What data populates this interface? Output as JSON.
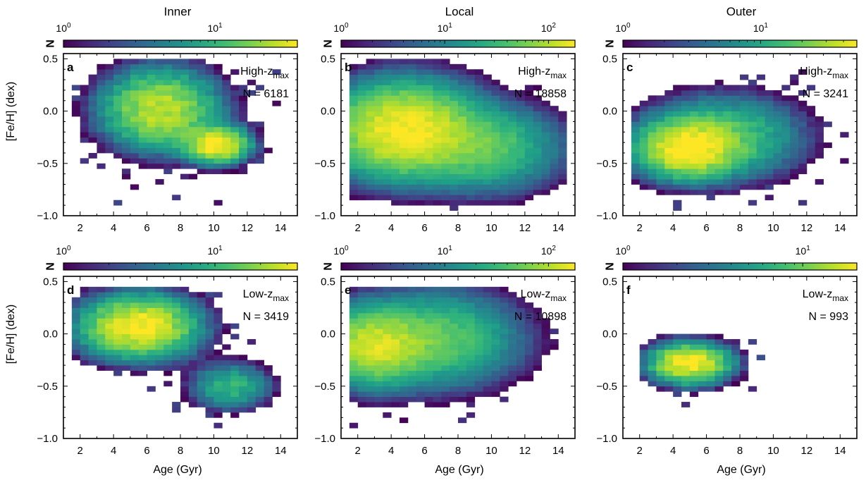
{
  "figure": {
    "column_titles": [
      "Inner",
      "Local",
      "Outer"
    ],
    "ylabel": "[Fe/H] (dex)",
    "xlabel": "Age (Gyr)",
    "colorbar_label": "N",
    "colormap": "viridis"
  },
  "chart_data": [
    {
      "type": "heatmap",
      "panel": "a",
      "column": "Inner",
      "row": "High-z_max",
      "label_main": "High-z",
      "label_sub": "max",
      "count_text": "N = 6181",
      "xlim": [
        1,
        15
      ],
      "ylim": [
        -1.0,
        0.55
      ],
      "xticks": [
        2,
        4,
        6,
        8,
        10,
        12,
        14
      ],
      "yticks": [
        -1.0,
        -0.5,
        0.0,
        0.5
      ],
      "colorbar": {
        "scale": "log",
        "range": [
          1,
          35
        ],
        "ticks": [
          {
            "value": 1,
            "base": "10",
            "exp": "0"
          },
          {
            "value": 10,
            "base": "10",
            "exp": "1"
          }
        ]
      },
      "density_model": {
        "blobs": [
          {
            "age": 10.2,
            "feh": -0.32,
            "sa": 1.1,
            "sf": 0.1,
            "amp": 1.0
          },
          {
            "age": 6.8,
            "feh": 0.02,
            "sa": 2.0,
            "sf": 0.22,
            "amp": 0.72
          }
        ],
        "age_range": [
          1.5,
          14.5
        ],
        "feh_range": [
          -0.95,
          0.5
        ],
        "peak": 35
      }
    },
    {
      "type": "heatmap",
      "panel": "b",
      "column": "Local",
      "row": "High-z_max",
      "label_main": "High-z",
      "label_sub": "max",
      "count_text": "N = 18858",
      "xlim": [
        1,
        15
      ],
      "ylim": [
        -1.0,
        0.55
      ],
      "xticks": [
        2,
        4,
        6,
        8,
        10,
        12,
        14
      ],
      "yticks": [
        -1.0,
        -0.5,
        0.0,
        0.5
      ],
      "colorbar": {
        "scale": "log",
        "range": [
          1,
          180
        ],
        "ticks": [
          {
            "value": 1,
            "base": "10",
            "exp": "0"
          },
          {
            "value": 10,
            "base": "10",
            "exp": "1"
          },
          {
            "value": 100,
            "base": "10",
            "exp": "2"
          }
        ]
      },
      "density_model": {
        "blobs": [
          {
            "age": 4.8,
            "feh": -0.18,
            "sa": 2.2,
            "sf": 0.22,
            "amp": 1.0
          },
          {
            "age": 9.5,
            "feh": -0.35,
            "sa": 2.2,
            "sf": 0.2,
            "amp": 0.28
          }
        ],
        "age_range": [
          1.5,
          14.5
        ],
        "feh_range": [
          -0.95,
          0.5
        ],
        "peak": 180
      }
    },
    {
      "type": "heatmap",
      "panel": "c",
      "column": "Outer",
      "row": "High-z_max",
      "label_main": "High-z",
      "label_sub": "max",
      "count_text": "N = 3241",
      "xlim": [
        1,
        15
      ],
      "ylim": [
        -1.0,
        0.55
      ],
      "xticks": [
        2,
        4,
        6,
        8,
        10,
        12,
        14
      ],
      "yticks": [
        -1.0,
        -0.5,
        0.0,
        0.5
      ],
      "colorbar": {
        "scale": "log",
        "range": [
          1,
          50
        ],
        "ticks": [
          {
            "value": 1,
            "base": "10",
            "exp": "0"
          },
          {
            "value": 10,
            "base": "10",
            "exp": "1"
          }
        ]
      },
      "density_model": {
        "blobs": [
          {
            "age": 4.8,
            "feh": -0.36,
            "sa": 1.6,
            "sf": 0.15,
            "amp": 1.0
          },
          {
            "age": 7.0,
            "feh": -0.25,
            "sa": 2.6,
            "sf": 0.22,
            "amp": 0.35
          }
        ],
        "age_range": [
          1.5,
          14.5
        ],
        "feh_range": [
          -0.95,
          0.4
        ],
        "peak": 50
      }
    },
    {
      "type": "heatmap",
      "panel": "d",
      "column": "Inner",
      "row": "Low-z_max",
      "label_main": "Low-z",
      "label_sub": "max",
      "count_text": "N = 3419",
      "xlim": [
        1,
        15
      ],
      "ylim": [
        -1.0,
        0.55
      ],
      "xticks": [
        2,
        4,
        6,
        8,
        10,
        12,
        14
      ],
      "yticks": [
        -1.0,
        -0.5,
        0.0,
        0.5
      ],
      "colorbar": {
        "scale": "log",
        "range": [
          1,
          35
        ],
        "ticks": [
          {
            "value": 1,
            "base": "10",
            "exp": "0"
          },
          {
            "value": 10,
            "base": "10",
            "exp": "1"
          }
        ]
      },
      "density_model": {
        "blobs": [
          {
            "age": 5.5,
            "feh": 0.07,
            "sa": 2.0,
            "sf": 0.17,
            "amp": 1.0
          },
          {
            "age": 11.0,
            "feh": -0.5,
            "sa": 1.4,
            "sf": 0.13,
            "amp": 0.3
          }
        ],
        "age_range": [
          1.5,
          14.5
        ],
        "feh_range": [
          -0.9,
          0.45
        ],
        "peak": 35
      }
    },
    {
      "type": "heatmap",
      "panel": "e",
      "column": "Local",
      "row": "Low-z_max",
      "label_main": "Low-z",
      "label_sub": "max",
      "count_text": "N = 10898",
      "xlim": [
        1,
        15
      ],
      "ylim": [
        -1.0,
        0.55
      ],
      "xticks": [
        2,
        4,
        6,
        8,
        10,
        12,
        14
      ],
      "yticks": [
        -1.0,
        -0.5,
        0.0,
        0.5
      ],
      "colorbar": {
        "scale": "log",
        "range": [
          1,
          180
        ],
        "ticks": [
          {
            "value": 1,
            "base": "10",
            "exp": "0"
          },
          {
            "value": 10,
            "base": "10",
            "exp": "1"
          },
          {
            "value": 100,
            "base": "10",
            "exp": "2"
          }
        ]
      },
      "density_model": {
        "blobs": [
          {
            "age": 3.0,
            "feh": -0.12,
            "sa": 1.6,
            "sf": 0.18,
            "amp": 1.0
          },
          {
            "age": 6.5,
            "feh": -0.05,
            "sa": 2.5,
            "sf": 0.22,
            "amp": 0.45
          }
        ],
        "age_range": [
          1.5,
          14.0
        ],
        "feh_range": [
          -0.95,
          0.45
        ],
        "peak": 120
      }
    },
    {
      "type": "heatmap",
      "panel": "f",
      "column": "Outer",
      "row": "Low-z_max",
      "label_main": "Low-z",
      "label_sub": "max",
      "count_text": "N = 993",
      "xlim": [
        1,
        15
      ],
      "ylim": [
        -1.0,
        0.55
      ],
      "xticks": [
        2,
        4,
        6,
        8,
        10,
        12,
        14
      ],
      "yticks": [
        -1.0,
        -0.5,
        0.0,
        0.5
      ],
      "colorbar": {
        "scale": "log",
        "range": [
          1,
          20
        ],
        "ticks": [
          {
            "value": 1,
            "base": "10",
            "exp": "0"
          },
          {
            "value": 10,
            "base": "10",
            "exp": "1"
          }
        ]
      },
      "density_model": {
        "blobs": [
          {
            "age": 5.0,
            "feh": -0.28,
            "sa": 1.5,
            "sf": 0.12,
            "amp": 1.0
          }
        ],
        "age_range": [
          2.0,
          14.0
        ],
        "feh_range": [
          -0.95,
          0.35
        ],
        "peak": 20
      }
    }
  ]
}
